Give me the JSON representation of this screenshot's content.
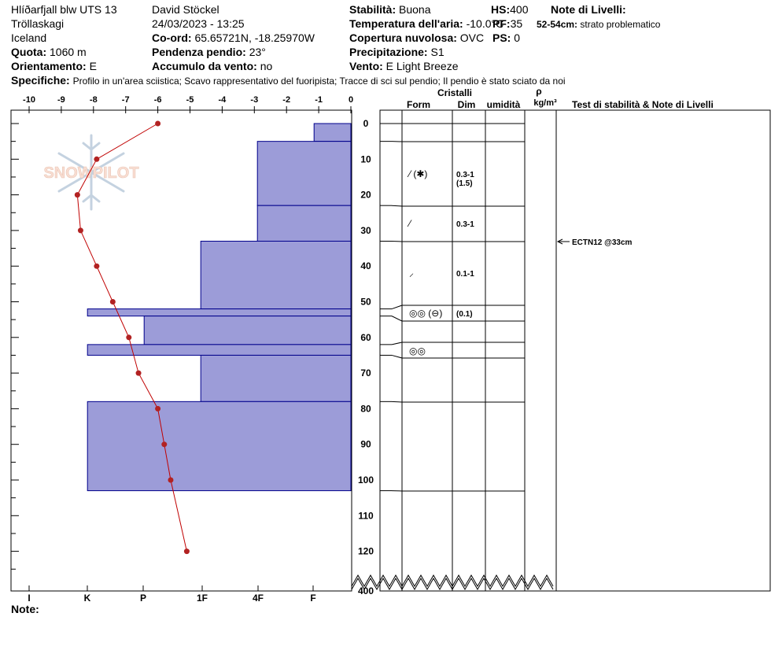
{
  "header": {
    "site": "Hlíðarfjall blw UTS 13",
    "region": "Tröllaskagi",
    "country": "Iceland",
    "elevation_label": "Quota:",
    "elevation": "1060 m",
    "aspect_label": "Orientamento:",
    "aspect": "E",
    "observer": "David Stöckel",
    "datetime": "24/03/2023 - 13:25",
    "coord_label": "Co-ord:",
    "coord": "65.65721N, -18.25970W",
    "slope_label": "Pendenza pendio:",
    "slope": "23°",
    "windload_label": "Accumulo da vento:",
    "windload": "no",
    "stability_label": "Stabilità:",
    "stability": "Buona",
    "airtemp_label": "Temperatura dell'aria:",
    "airtemp": "-10.0°C",
    "cloud_label": "Copertura nuvolosa:",
    "cloud": "OVC",
    "precip_label": "Precipitazione:",
    "precip": "S1",
    "wind_label": "Vento:",
    "wind": "E Light Breeze",
    "hs_label": "HS:",
    "hs": "400",
    "pf_label": "PF:",
    "pf": "35",
    "ps_label": "PS:",
    "ps": "0",
    "layer_notes_label": "Note di Livelli:",
    "layer_note_range": "52-54cm:",
    "layer_note_text": "strato problematico",
    "specifics_label": "Specifiche:",
    "specifics": "Profilo in un'area sciistica; Scavo rappresentativo del fuoripista; Tracce di sci sul pendio; Il pendio è stato sciato da noi",
    "note_label": "Note:"
  },
  "watermark": "SNOWPILOT",
  "columns": {
    "crystals": "Cristalli",
    "form": "Form",
    "dim": "Dim",
    "humidity": "umidità",
    "rho": "ρ",
    "density_unit": "kg/m³",
    "tests": "Test di stabilità & Note di Livelli"
  },
  "test_result": "ECTN12 @33cm",
  "colors": {
    "layer_fill": "#9c9cd8",
    "layer_edge": "#00008b",
    "temp_line": "#c00000",
    "temp_dot": "#b22222"
  },
  "chart_data": {
    "type": "snow-profile",
    "temp_axis": {
      "ticks": [
        "-10",
        "-9",
        "-8",
        "-7",
        "-6",
        "-5",
        "-4",
        "-3",
        "-2",
        "-1",
        "0"
      ],
      "range": [
        -10.5,
        0
      ]
    },
    "hardness_axis": {
      "labels": [
        "I",
        "K",
        "P",
        "1F",
        "4F",
        "F"
      ],
      "values": [
        6,
        5,
        4,
        3,
        2,
        1
      ]
    },
    "depth_axis": {
      "ticks": [
        "0",
        "10",
        "20",
        "30",
        "40",
        "50",
        "60",
        "70",
        "80",
        "90",
        "100",
        "110",
        "120"
      ],
      "bottom_label": "400",
      "range": [
        0,
        130
      ]
    },
    "layers": [
      {
        "top": 0,
        "bottom": 5,
        "hardness": 0.65
      },
      {
        "top": 5,
        "bottom": 23,
        "hardness": 1.65
      },
      {
        "top": 23,
        "bottom": 33,
        "hardness": 1.65
      },
      {
        "top": 33,
        "bottom": 52,
        "hardness": 2.65
      },
      {
        "top": 52,
        "bottom": 54,
        "hardness": 4.65
      },
      {
        "top": 54,
        "bottom": 62,
        "hardness": 3.65
      },
      {
        "top": 62,
        "bottom": 65,
        "hardness": 4.65
      },
      {
        "top": 65,
        "bottom": 78,
        "hardness": 2.65
      },
      {
        "top": 78,
        "bottom": 103,
        "hardness": 4.65
      }
    ],
    "temperature": {
      "depth": [
        0,
        10,
        20,
        30,
        40,
        50,
        60,
        70,
        80,
        90,
        100,
        120
      ],
      "value": [
        -6.0,
        -7.9,
        -8.5,
        -8.4,
        -7.9,
        -7.4,
        -6.9,
        -6.6,
        -6.0,
        -5.8,
        -5.6,
        -5.1
      ]
    },
    "crystal_rows": [
      {
        "form": "⁄ (✱)",
        "dim": "0.3-1",
        "dim2": "(1.5)",
        "depth": 14
      },
      {
        "form": "⁄",
        "dim": "0.3-1",
        "depth": 28
      },
      {
        "form": "⸝",
        "dim": "0.1-1",
        "depth": 42
      },
      {
        "form": "◎◎ (⊖)",
        "dim": "(0.1)",
        "depth": 53
      },
      {
        "form": "◎◎",
        "depth": 64
      }
    ],
    "stability_test": {
      "depth": 33
    }
  }
}
